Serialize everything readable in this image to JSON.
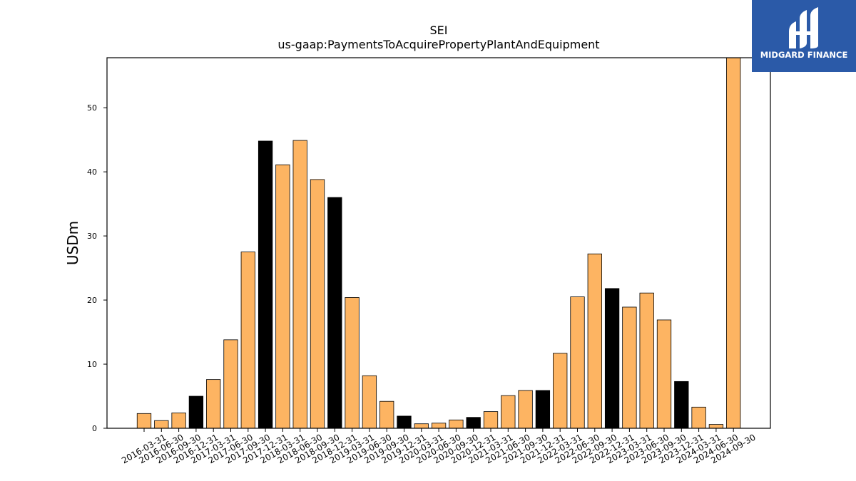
{
  "chart_data": {
    "type": "bar",
    "title": "SEI",
    "subtitle": "us-gaap:PaymentsToAcquirePropertyPlantAndEquipment",
    "xlabel": "",
    "ylabel": "USDm",
    "ylim": [
      0,
      57.8
    ],
    "yticks": [
      0,
      10,
      20,
      30,
      40,
      50
    ],
    "grid": false,
    "categories": [
      "2016-03-31",
      "2016-06-30",
      "2016-09-30",
      "2016-12-31",
      "2017-03-31",
      "2017-06-30",
      "2017-09-30",
      "2017-12-31",
      "2018-03-31",
      "2018-06-30",
      "2018-09-30",
      "2018-12-31",
      "2019-03-31",
      "2019-06-30",
      "2019-09-30",
      "2019-12-31",
      "2020-03-31",
      "2020-06-30",
      "2020-09-30",
      "2020-12-31",
      "2021-03-31",
      "2021-06-30",
      "2021-09-30",
      "2021-12-31",
      "2022-03-31",
      "2022-06-30",
      "2022-09-30",
      "2022-12-31",
      "2023-03-31",
      "2023-06-30",
      "2023-09-30",
      "2023-12-31",
      "2024-03-31",
      "2024-06-30",
      "2024-09-30"
    ],
    "values": [
      2.3,
      1.2,
      2.4,
      5.0,
      7.6,
      13.8,
      27.5,
      44.8,
      41.1,
      44.9,
      38.8,
      36.0,
      20.4,
      8.2,
      4.2,
      1.9,
      0.7,
      0.8,
      1.3,
      1.7,
      2.6,
      5.1,
      5.9,
      5.9,
      11.7,
      20.5,
      27.2,
      21.8,
      18.9,
      21.1,
      16.9,
      7.3,
      3.3,
      0.6,
      57.8
    ],
    "highlight": [
      false,
      false,
      false,
      true,
      false,
      false,
      false,
      true,
      false,
      false,
      false,
      true,
      false,
      false,
      false,
      true,
      false,
      false,
      false,
      true,
      false,
      false,
      false,
      true,
      false,
      false,
      false,
      true,
      false,
      false,
      false,
      true,
      false,
      false,
      false
    ],
    "colors": {
      "normal": "#fdb462",
      "highlight": "#000000",
      "edge": "#000000"
    }
  },
  "logo": {
    "text": "MIDGARD FINANCE",
    "background": "#2b5aa8",
    "icon": "midgard-logo-icon"
  }
}
